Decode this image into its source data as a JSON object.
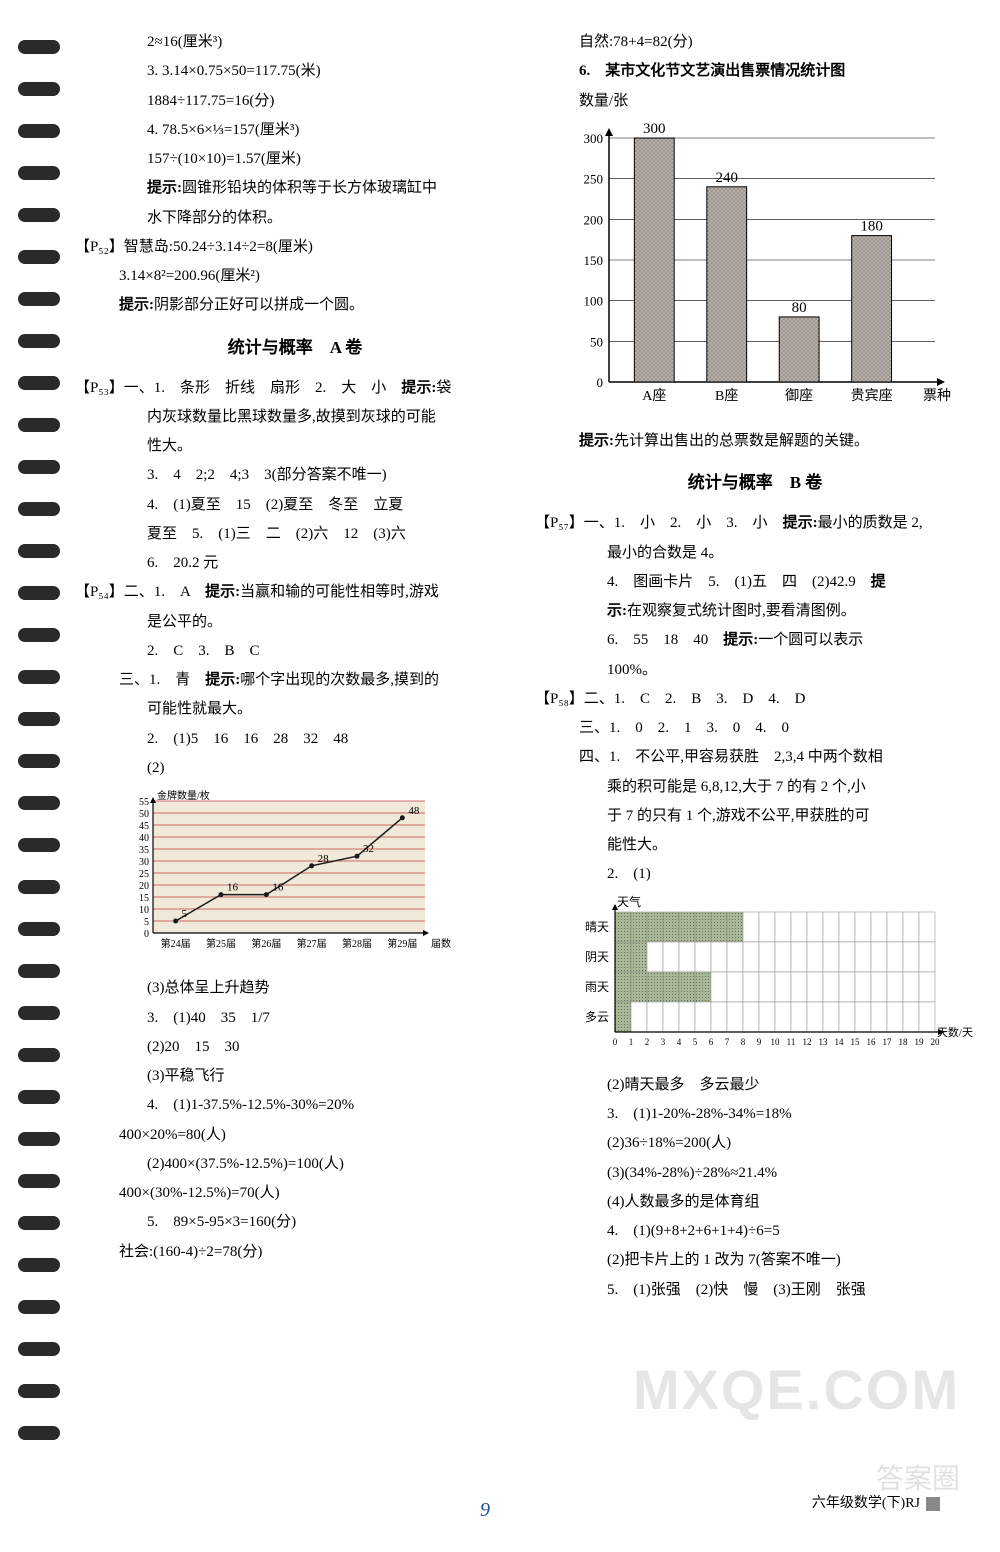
{
  "left": {
    "l1": "2≈16(厘米³)",
    "l2": "3. 3.14×0.75×50=117.75(米)",
    "l3": "1884÷117.75=16(分)",
    "l4": "4. 78.5×6×⅓=157(厘米³)",
    "l5": "157÷(10×10)=1.57(厘米)",
    "l6a": "提示:",
    "l6b": "圆锥形铅块的体积等于长方体玻璃缸中",
    "l7": "水下降部分的体积。",
    "l8": "【P₅₂】智慧岛:50.24÷3.14÷2=8(厘米)",
    "l9": "3.14×8²=200.96(厘米²)",
    "l10a": "提示:",
    "l10b": "阴影部分正好可以拼成一个圆。",
    "titleA": "统计与概率　A 卷",
    "p53_1": "【P₅₃】一、1.　条形　折线　扇形　2.　大　小　",
    "p53_1tip": "提示:",
    "p53_1b": "袋",
    "p53_2": "内灰球数量比黑球数量多,故摸到灰球的可能",
    "p53_3": "性大。",
    "p53_4": "3.　4　2;2　4;3　3(部分答案不唯一)",
    "p53_5": "4.　(1)夏至　15　(2)夏至　冬至　立夏",
    "p53_6": "夏至　5.　(1)三　二　(2)六　12　(3)六",
    "p53_7": "6.　20.2 元",
    "p54_1": "【P₅₄】二、1.　A　",
    "p54_1tip": "提示:",
    "p54_1b": "当赢和输的可能性相等时,游戏",
    "p54_2": "是公平的。",
    "p54_3": "2.　C　3.　B　C",
    "p54_4": "三、1.　青　",
    "p54_4tip": "提示:",
    "p54_4b": "哪个字出现的次数最多,摸到的",
    "p54_5": "可能性就最大。",
    "p54_6": "2.　(1)5　16　16　28　32　48",
    "p54_7": "(2)",
    "lineChart": {
      "ylabel": "金牌数量/枚",
      "xlabels": [
        "第24届",
        "第25届",
        "第26届",
        "第27届",
        "第28届",
        "第29届"
      ],
      "xlabel_suffix": "届数",
      "values": [
        5,
        16,
        16,
        28,
        32,
        48
      ],
      "ymax": 55,
      "yticks": [
        0,
        5,
        10,
        15,
        20,
        25,
        30,
        35,
        40,
        45,
        50,
        55
      ],
      "line_color": "#1a1a1a",
      "grid_color": "#c04040",
      "bg_color": "#f0e8d8",
      "text_color": "#000000"
    },
    "p54_8": "(3)总体呈上升趋势",
    "p54_9": "3.　(1)40　35　1/7",
    "p54_10": "(2)20　15　30",
    "p54_11": "(3)平稳飞行",
    "p54_12": "4.　(1)1-37.5%-12.5%-30%=20%",
    "p54_13": "400×20%=80(人)",
    "p54_14": "(2)400×(37.5%-12.5%)=100(人)",
    "p54_15": "400×(30%-12.5%)=70(人)",
    "p54_16": "5.　89×5-95×3=160(分)",
    "p54_17": "社会:(160-4)÷2=78(分)"
  },
  "right": {
    "r1": "自然:78+4=82(分)",
    "r2": "6.　某市文化节文艺演出售票情况统计图",
    "r3": "数量/张",
    "barChart": {
      "categories": [
        "A座",
        "B座",
        "御座",
        "贵宾座"
      ],
      "xlabel_suffix": "票种",
      "values": [
        300,
        240,
        80,
        180
      ],
      "ymax": 300,
      "yticks": [
        0,
        50,
        100,
        150,
        200,
        250,
        300
      ],
      "bar_fill": "#b8b0a8",
      "bar_pattern": true,
      "grid_color": "#000000",
      "text_color": "#000000",
      "bar_width": 0.55
    },
    "r4a": "提示:",
    "r4b": "先计算出售出的总票数是解题的关键。",
    "titleB": "统计与概率　B 卷",
    "p57_1": "【P₅₇】一、1.　小　2.　小　3.　小　",
    "p57_1tip": "提示:",
    "p57_1b": "最小的质数是 2,",
    "p57_2": "最小的合数是 4。",
    "p57_3": "4.　图画卡片　5.　(1)五　四　(2)42.9　",
    "p57_3tip": "提",
    "p57_4tip": "示:",
    "p57_4": "在观察复式统计图时,要看清图例。",
    "p57_5": "6.　55　18　40　",
    "p57_5tip": "提示:",
    "p57_5b": "一个圆可以表示",
    "p57_6": "100%。",
    "p58_1": "【P₅₈】二、1.　C　2.　B　3.　D　4.　D",
    "p58_2": "三、1.　0　2.　1　3.　0　4.　0",
    "p58_3": "四、1.　不公平,甲容易获胜　2,3,4 中两个数相",
    "p58_4": "乘的积可能是 6,8,12,大于 7 的有 2 个,小",
    "p58_5": "于 7 的只有 1 个,游戏不公平,甲获胜的可",
    "p58_6": "能性大。",
    "p58_7": "2.　(1)",
    "weatherChart": {
      "ylabel": "天气",
      "xlabel": "天数/天",
      "categories": [
        "晴天",
        "阴天",
        "雨天",
        "多云"
      ],
      "values": [
        8,
        2,
        6,
        1
      ],
      "xmax": 20,
      "xticks": [
        0,
        1,
        2,
        3,
        4,
        5,
        6,
        7,
        8,
        9,
        10,
        11,
        12,
        13,
        14,
        15,
        16,
        17,
        18,
        19,
        20
      ],
      "cell_fill": "#a8b898",
      "grid_color": "#888888"
    },
    "p58_8": "(2)晴天最多　多云最少",
    "p58_9": "3.　(1)1-20%-28%-34%=18%",
    "p58_10": "(2)36÷18%=200(人)",
    "p58_11": "(3)(34%-28%)÷28%≈21.4%",
    "p58_12": "(4)人数最多的是体育组",
    "p58_13": "4.　(1)(9+8+2+6+1+4)÷6=5",
    "p58_14": "(2)把卡片上的 1 改为 7(答案不唯一)",
    "p58_15": "5.　(1)张强　(2)快　慢　(3)王刚　张强"
  },
  "footer": "六年级数学(下)RJ",
  "pageNum": "9",
  "watermark1": "MXQE.COM",
  "watermark2": "答案圈"
}
